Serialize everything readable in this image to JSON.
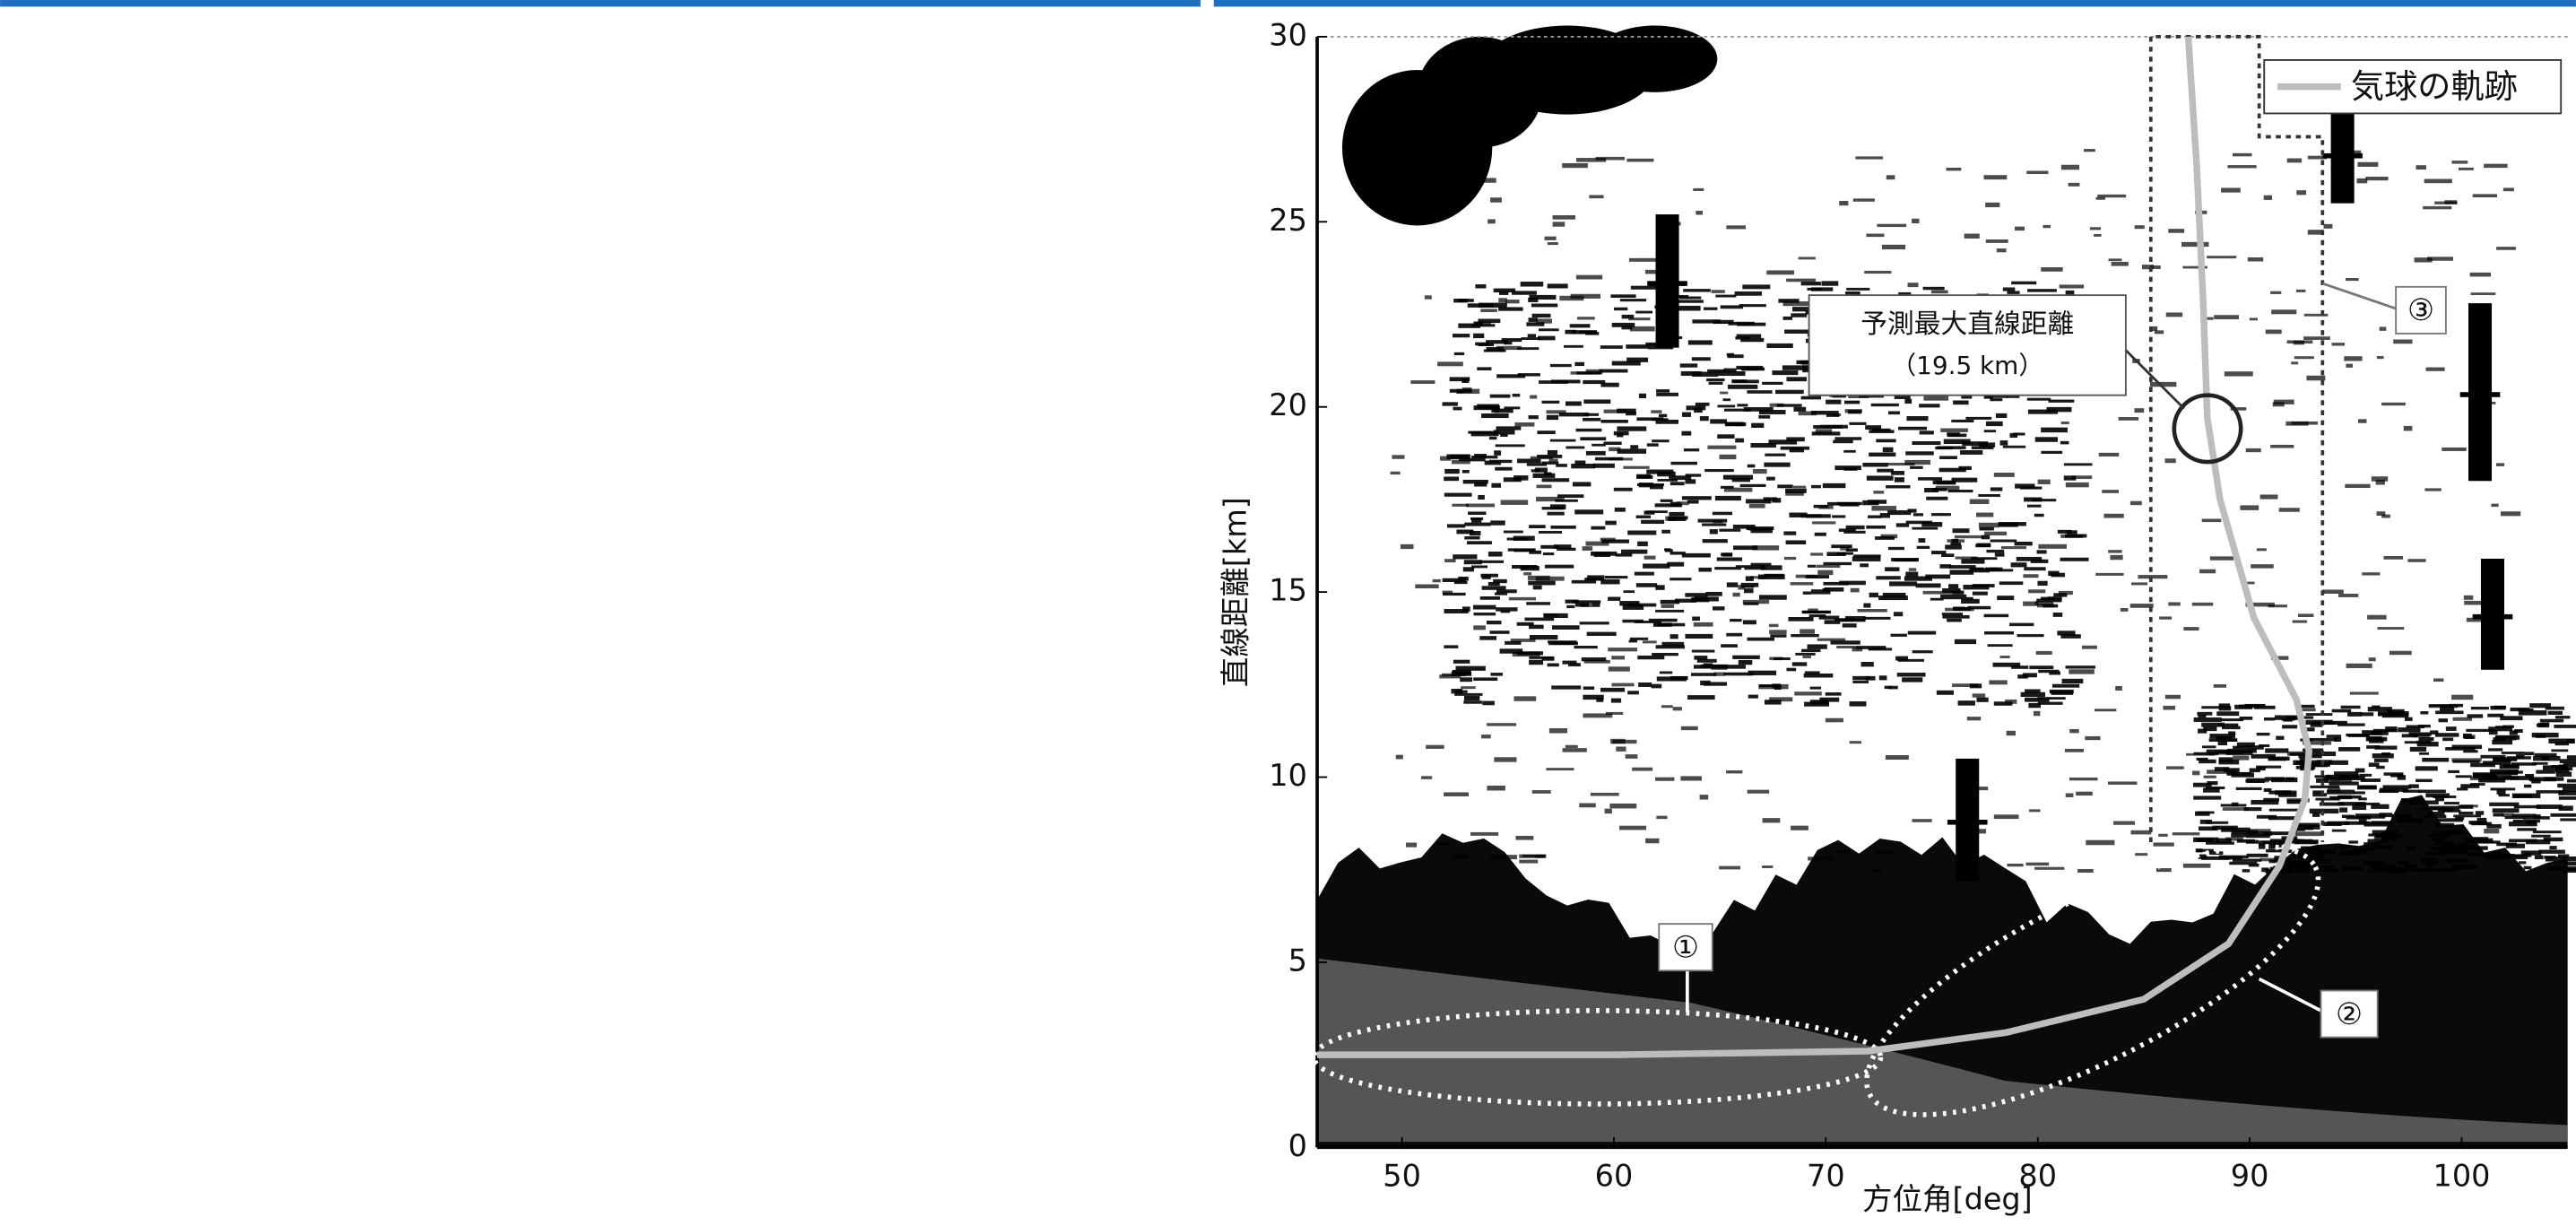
{
  "chart_data": {
    "type": "line",
    "x_label": "方位角[deg]",
    "y_label": "直線距離[km]",
    "x": [
      46,
      60,
      72,
      78.5,
      85,
      89,
      91.4,
      92.6,
      92.8,
      92.2,
      90.2,
      88.6,
      88,
      87.8,
      87.5,
      87.1
    ],
    "series": [
      {
        "name": "気球の軌跡",
        "color": "#bdbdbd",
        "values": [
          2.5,
          2.5,
          2.6,
          3.1,
          4.0,
          5.5,
          7.6,
          9.4,
          10.7,
          12.1,
          14.3,
          17.5,
          19.7,
          22.9,
          26.5,
          30
        ]
      }
    ],
    "xlim": [
      46,
      105
    ],
    "xticks": [
      50,
      60,
      70,
      80,
      90,
      100
    ],
    "ylim": [
      0,
      30
    ],
    "yticks": [
      0,
      5,
      10,
      15,
      20,
      25,
      30
    ],
    "legend": "upper right",
    "annotations": [
      "①",
      "②",
      "③",
      "予測最大直線距離",
      "（19.5 km）"
    ]
  }
}
